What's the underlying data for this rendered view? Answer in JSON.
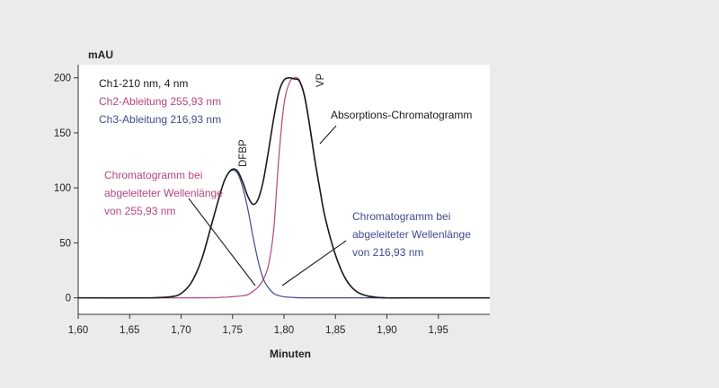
{
  "chart_data": {
    "type": "line",
    "ylabel": "mAU",
    "xlabel": "Minuten",
    "xlim": [
      1.6,
      2.0
    ],
    "ylim": [
      -15,
      212
    ],
    "x_ticks": [
      1.6,
      1.65,
      1.7,
      1.75,
      1.8,
      1.85,
      1.9,
      1.95
    ],
    "x_tick_labels": [
      "1,60",
      "1,65",
      "1,70",
      "1,75",
      "1,80",
      "1,85",
      "1,90",
      "1,95"
    ],
    "y_ticks": [
      0,
      50,
      100,
      150,
      200
    ],
    "y_tick_labels": [
      "0",
      "50",
      "100",
      "150",
      "200"
    ],
    "grid": false,
    "legend_placement": "top-left",
    "legend": [
      {
        "text": "Ch1-210 nm, 4 nm",
        "color": "#1a1a1a"
      },
      {
        "text": "Ch2-Ableitung 255,93 nm",
        "color": "#b5457f"
      },
      {
        "text": "Ch3-Ableitung 216,93 nm",
        "color": "#3f4a8c"
      }
    ],
    "series": [
      {
        "name": "Ch1-210 nm, 4 nm",
        "color": "#1a1a1a",
        "x": [
          1.6,
          1.67,
          1.69,
          1.7,
          1.71,
          1.72,
          1.73,
          1.74,
          1.745,
          1.75,
          1.755,
          1.76,
          1.765,
          1.77,
          1.775,
          1.78,
          1.785,
          1.79,
          1.795,
          1.8,
          1.805,
          1.81,
          1.815,
          1.82,
          1.825,
          1.83,
          1.835,
          1.84,
          1.85,
          1.86,
          1.87,
          1.88,
          1.89,
          1.9,
          1.92,
          2.0
        ],
        "y": [
          0,
          0,
          1,
          4,
          14,
          35,
          68,
          101,
          112,
          117,
          115,
          105,
          92,
          85,
          90,
          107,
          134,
          163,
          187,
          198,
          200,
          199,
          197,
          183,
          156,
          125,
          98,
          73,
          39,
          17,
          6,
          2,
          0.5,
          0,
          0,
          0
        ]
      },
      {
        "name": "Ch2-Ableitung 255,93 nm",
        "color": "#b5457f",
        "x": [
          1.6,
          1.72,
          1.74,
          1.75,
          1.76,
          1.765,
          1.77,
          1.775,
          1.78,
          1.785,
          1.79,
          1.795,
          1.8,
          1.805,
          1.81,
          1.815,
          1.82,
          1.825,
          1.83,
          1.835,
          1.84,
          1.85,
          1.86,
          1.87,
          1.88,
          1.89,
          1.9,
          1.92,
          2.0
        ],
        "y": [
          0,
          0,
          0.5,
          1,
          2,
          3,
          6,
          10,
          17,
          30,
          62,
          128,
          176,
          195,
          200,
          198,
          184,
          157,
          126,
          98,
          73,
          39,
          17,
          6,
          2,
          0.5,
          0,
          0,
          0
        ]
      },
      {
        "name": "Ch3-Ableitung 216,93 nm",
        "color": "#3f4a8c",
        "x": [
          1.6,
          1.67,
          1.69,
          1.7,
          1.71,
          1.72,
          1.73,
          1.74,
          1.745,
          1.75,
          1.755,
          1.76,
          1.765,
          1.77,
          1.775,
          1.78,
          1.785,
          1.79,
          1.795,
          1.8,
          1.81,
          1.82,
          1.85,
          2.0
        ],
        "y": [
          0,
          0,
          1,
          4,
          14,
          35,
          68,
          101,
          112,
          116,
          113,
          100,
          80,
          55,
          33,
          17,
          9,
          4,
          2,
          1,
          0.3,
          0,
          0,
          0
        ]
      }
    ],
    "annotations": [
      {
        "text": "DFBP",
        "rotated": true
      },
      {
        "text": "VP",
        "rotated": true
      },
      {
        "text": "Absorptions-Chromatogramm",
        "color": "#1a1a1a"
      },
      {
        "lines": [
          "Chromatogramm bei",
          "abgeleiteter Wellenlänge",
          "von 255,93 nm"
        ],
        "color": "#b5457f"
      },
      {
        "lines": [
          "Chromatogramm bei",
          "abgeleiteter Wellenlänge",
          "von 216,93 nm"
        ],
        "color": "#3f4a8c"
      }
    ]
  }
}
